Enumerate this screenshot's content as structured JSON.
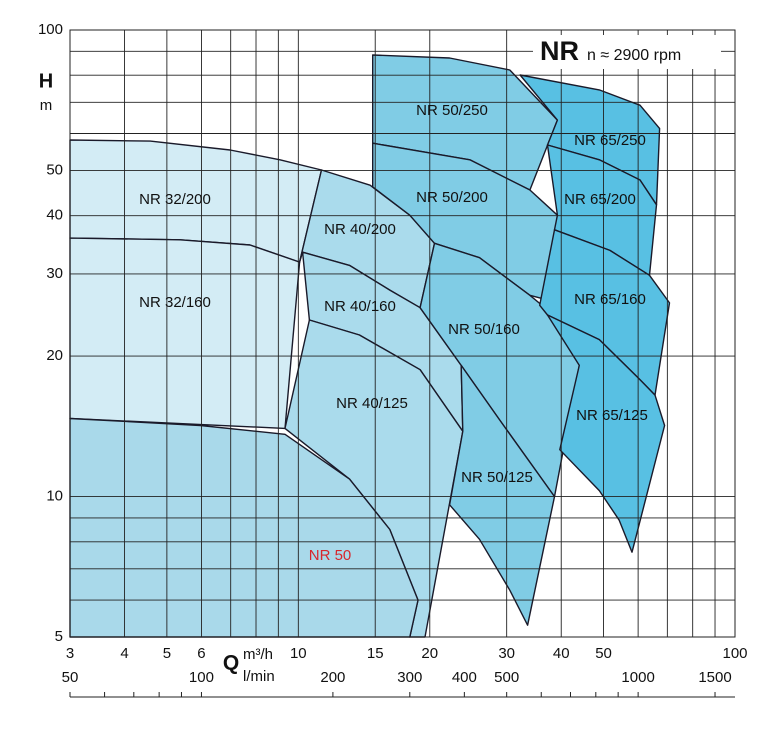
{
  "chart_data": {
    "type": "region",
    "title": "NR",
    "subtitle": "n ≈ 2900 rpm",
    "x_label": "Q",
    "x_unit": "m³/h",
    "x2_unit": "l/min",
    "y_label": "H",
    "y_unit": "m",
    "xscale": "log",
    "yscale": "log",
    "grid": true,
    "xlim": [
      3,
      100
    ],
    "ylim": [
      5,
      100
    ],
    "xticks": [
      3,
      4,
      5,
      6,
      10,
      15,
      20,
      30,
      40,
      50,
      100
    ],
    "xgrid": [
      3,
      4,
      5,
      6,
      7,
      8,
      9,
      10,
      15,
      20,
      30,
      40,
      50,
      60,
      70,
      80,
      90,
      100
    ],
    "yticks": [
      5,
      10,
      20,
      30,
      40,
      50,
      100
    ],
    "ygrid": [
      5,
      6,
      7,
      8,
      9,
      10,
      20,
      30,
      40,
      50,
      60,
      70,
      80,
      90,
      100
    ],
    "x2lim": [
      50,
      1666.67
    ],
    "x2ticks": [
      50,
      100,
      200,
      300,
      400,
      500,
      1000,
      1500
    ],
    "x2marks": [
      50,
      60,
      70,
      80,
      90,
      100,
      200,
      300,
      400,
      500,
      600,
      700,
      800,
      900,
      1000,
      1500
    ],
    "regions": [
      {
        "name": "NR 32/200",
        "color": "#d3ecf5",
        "q": [
          3,
          4.58,
          6.98,
          9.08,
          11.3,
          10.07,
          7.75,
          5.36,
          3
        ],
        "h": [
          58.1,
          57.8,
          55.3,
          52.7,
          50.1,
          31.8,
          34.6,
          35.5,
          35.8
        ]
      },
      {
        "name": "NR 32/160",
        "color": "#d3ecf5",
        "q": [
          3,
          5.36,
          7.75,
          10.07,
          9.32,
          3
        ],
        "h": [
          35.8,
          35.5,
          34.6,
          31.8,
          14.0,
          14.7
        ]
      },
      {
        "name": "NR 40/200",
        "color": "#aadbec",
        "q": [
          11.3,
          14.6,
          18.0,
          20.5,
          19.0,
          16.2,
          13.1,
          10.23,
          10.07
        ],
        "h": [
          50.1,
          46.5,
          40.1,
          34.9,
          25.4,
          27.7,
          31.3,
          33.4,
          31.8
        ]
      },
      {
        "name": "NR 40/160",
        "color": "#aadbec",
        "q": [
          10.23,
          13.1,
          16.2,
          19.0,
          23.6,
          23.8,
          19.0,
          13.8,
          10.6
        ],
        "h": [
          33.4,
          31.3,
          27.7,
          25.4,
          19.1,
          13.8,
          18.7,
          22.2,
          23.9
        ]
      },
      {
        "name": "NR 40/125",
        "color": "#aadbec",
        "q": [
          10.6,
          13.8,
          19.0,
          23.8,
          19.5,
          18.0,
          18.8,
          16.2,
          13.1,
          9.32
        ],
        "h": [
          23.9,
          22.2,
          18.7,
          13.8,
          5,
          5,
          6.0,
          8.5,
          10.9,
          14.0
        ]
      },
      {
        "name": "NR 50",
        "color": "#a9d9ea",
        "label_color": "#d7262d",
        "q": [
          3,
          5.97,
          9.32,
          13.1,
          16.2,
          18.8,
          18.0,
          3
        ],
        "h": [
          14.7,
          14.2,
          13.6,
          10.9,
          8.5,
          6.0,
          5,
          5
        ]
      },
      {
        "name": "NR 50/250",
        "color": "#80cce5",
        "q": [
          14.8,
          22.2,
          30.5,
          39.2,
          33.9,
          24.7,
          14.8
        ],
        "h": [
          88.4,
          87.1,
          82.1,
          64.1,
          45.4,
          52.7,
          57.2
        ]
      },
      {
        "name": "NR 50/200",
        "color": "#80cce5",
        "q": [
          14.8,
          24.7,
          33.9,
          39.2,
          37.2,
          33.9,
          26.0,
          20.5,
          18.0,
          14.8
        ],
        "h": [
          57.2,
          52.7,
          45.4,
          40.1,
          26.4,
          27.0,
          32.5,
          34.9,
          40.1,
          46.1
        ]
      },
      {
        "name": "NR 50/160",
        "color": "#80cce5",
        "q": [
          20.5,
          26.0,
          33.9,
          39.7,
          44.0,
          38.6,
          28.9,
          23.6,
          19.0
        ],
        "h": [
          34.9,
          32.5,
          27.0,
          23.9,
          19.1,
          10.0,
          14.6,
          19.1,
          25.4
        ]
      },
      {
        "name": "NR 50/125",
        "color": "#80cce5",
        "q": [
          23.6,
          28.9,
          38.6,
          33.5,
          30.5,
          26.0,
          22.2,
          23.8
        ],
        "h": [
          19.1,
          14.6,
          10.0,
          5.3,
          6.3,
          8.1,
          9.6,
          13.8
        ]
      },
      {
        "name": "NR 65/250",
        "color": "#58c0e3",
        "q": [
          32.2,
          48.9,
          60.6,
          67.2,
          66.1,
          60.6,
          48.9,
          37.2,
          39.2
        ],
        "h": [
          80.1,
          74.4,
          69.0,
          61.5,
          42.2,
          47.7,
          52.7,
          56.7,
          64.1
        ]
      },
      {
        "name": "NR 65/200",
        "color": "#58c0e3",
        "q": [
          37.2,
          48.9,
          60.6,
          66.1,
          63.7,
          51.7,
          38.6,
          39.2
        ],
        "h": [
          56.7,
          52.7,
          47.7,
          42.2,
          29.8,
          33.7,
          37.3,
          40.1
        ]
      },
      {
        "name": "NR 65/160",
        "color": "#58c0e3",
        "q": [
          38.6,
          51.7,
          63.7,
          70.8,
          65.6,
          60.6,
          48.9,
          37.2,
          35.7
        ],
        "h": [
          37.3,
          33.7,
          29.8,
          26.0,
          16.5,
          17.8,
          21.7,
          24.5,
          25.7
        ]
      },
      {
        "name": "NR 65/125",
        "color": "#58c0e3",
        "q": [
          37.2,
          48.9,
          60.6,
          65.6,
          69.0,
          58.1,
          54.3,
          48.9,
          39.7,
          44.0
        ],
        "h": [
          24.5,
          21.7,
          17.8,
          16.5,
          14.2,
          7.6,
          8.9,
          10.3,
          12.6,
          19.1
        ]
      }
    ]
  }
}
